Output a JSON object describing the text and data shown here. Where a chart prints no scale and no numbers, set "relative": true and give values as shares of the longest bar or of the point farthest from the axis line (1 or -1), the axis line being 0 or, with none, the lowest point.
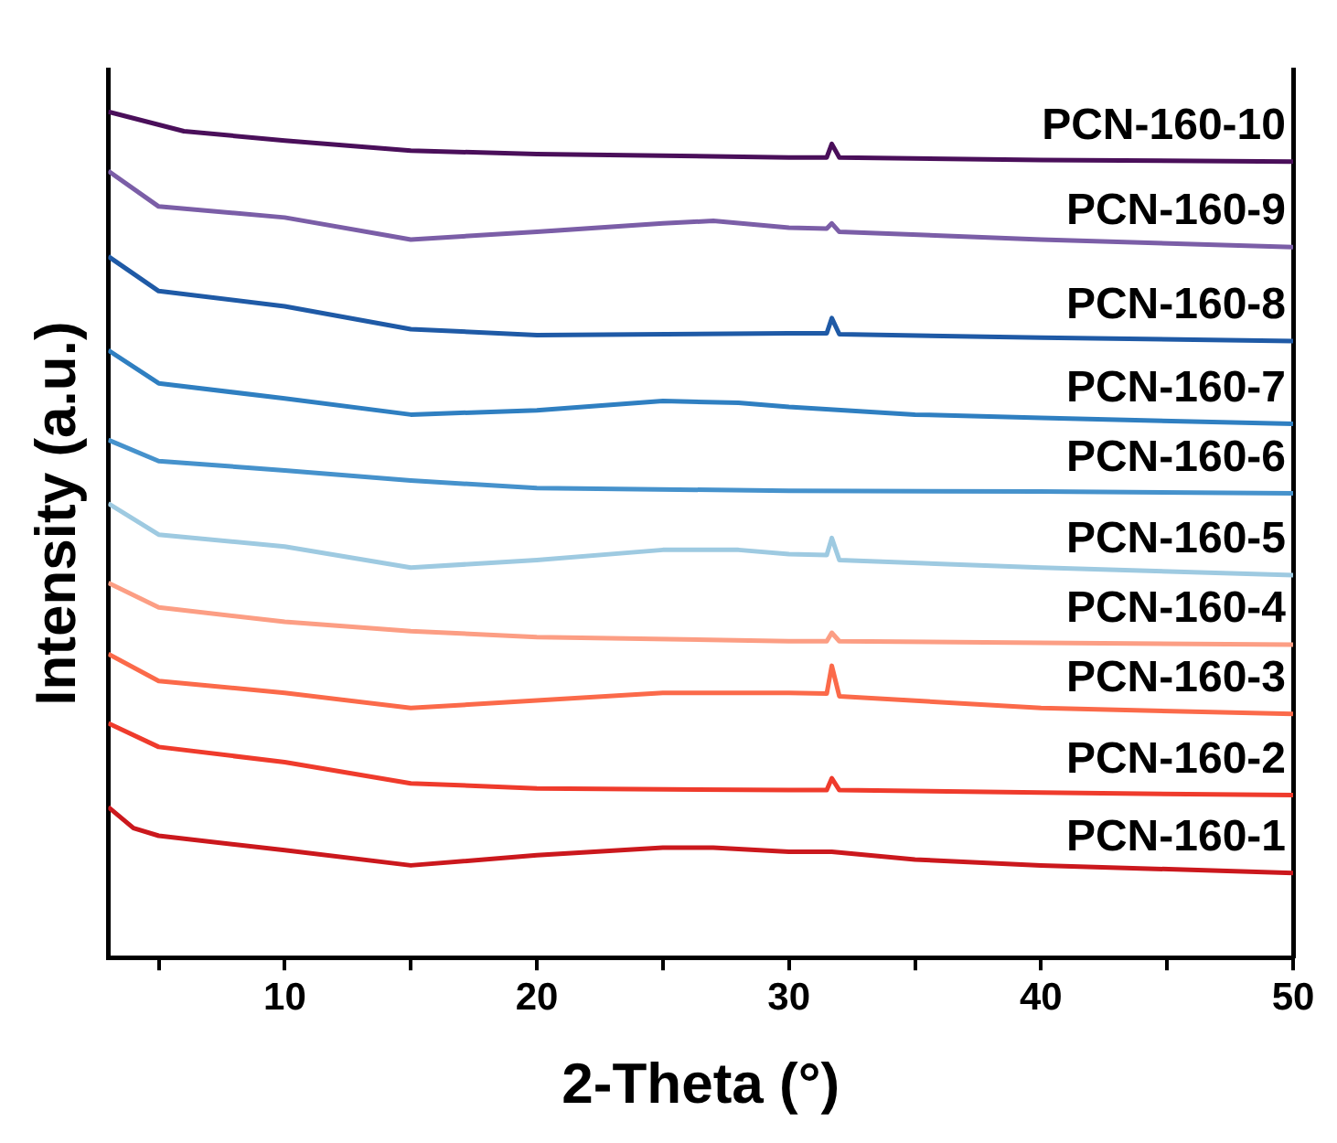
{
  "chart_data": {
    "type": "line",
    "xlabel": "2-Theta (°)",
    "ylabel": "Intensity (a.u.)",
    "relative": true,
    "legend": false,
    "grid": false,
    "marker": "none",
    "line_style": "solid",
    "xlim": [
      3,
      50
    ],
    "xticks": [
      {
        "value": 5,
        "label": null
      },
      10,
      {
        "value": 15,
        "label": null
      },
      20,
      {
        "value": 25,
        "label": null
      },
      30,
      {
        "value": 35,
        "label": null
      },
      40,
      {
        "value": 45,
        "label": null
      },
      50
    ],
    "series": [
      {
        "name": "PCN-160-1",
        "color": "#cb181d",
        "x": [
          3,
          4,
          5,
          10,
          15,
          20,
          25,
          27,
          30,
          31.7,
          35,
          40,
          50
        ],
        "values": [
          0.178,
          0.153,
          0.144,
          0.127,
          0.109,
          0.121,
          0.13,
          0.13,
          0.125,
          0.125,
          0.116,
          0.109,
          0.1
        ]
      },
      {
        "name": "PCN-160-2",
        "color": "#ef3b2c",
        "x": [
          3,
          5,
          10,
          15,
          20,
          30,
          31.5,
          31.7,
          32,
          40,
          50
        ],
        "values": [
          0.277,
          0.249,
          0.231,
          0.206,
          0.2,
          0.198,
          0.198,
          0.212,
          0.198,
          0.195,
          0.192
        ]
      },
      {
        "name": "PCN-160-3",
        "color": "#fb6a4a",
        "x": [
          3,
          5,
          10,
          15,
          20,
          25,
          30,
          31.5,
          31.7,
          32,
          40,
          50
        ],
        "values": [
          0.359,
          0.327,
          0.313,
          0.295,
          0.304,
          0.313,
          0.313,
          0.312,
          0.345,
          0.309,
          0.295,
          0.288
        ]
      },
      {
        "name": "PCN-160-4",
        "color": "#fc9e84",
        "x": [
          3,
          5,
          10,
          15,
          20,
          30,
          31.5,
          31.7,
          32,
          40,
          50
        ],
        "values": [
          0.443,
          0.414,
          0.397,
          0.386,
          0.379,
          0.374,
          0.374,
          0.384,
          0.374,
          0.372,
          0.37
        ]
      },
      {
        "name": "PCN-160-5",
        "color": "#9ecae1",
        "x": [
          3,
          5,
          10,
          15,
          20,
          25,
          28,
          30,
          31.5,
          31.7,
          32,
          40,
          50
        ],
        "values": [
          0.537,
          0.5,
          0.486,
          0.461,
          0.47,
          0.482,
          0.482,
          0.477,
          0.476,
          0.496,
          0.47,
          0.461,
          0.452
        ]
      },
      {
        "name": "PCN-160-6",
        "color": "#4692cc",
        "x": [
          3,
          5,
          10,
          15,
          20,
          30,
          40,
          50
        ],
        "values": [
          0.612,
          0.587,
          0.576,
          0.564,
          0.555,
          0.552,
          0.551,
          0.549
        ]
      },
      {
        "name": "PCN-160-7",
        "color": "#2f7fc1",
        "x": [
          3,
          5,
          10,
          15,
          20,
          25,
          28,
          30,
          35,
          40,
          50
        ],
        "values": [
          0.718,
          0.679,
          0.661,
          0.642,
          0.647,
          0.658,
          0.656,
          0.651,
          0.642,
          0.638,
          0.631
        ]
      },
      {
        "name": "PCN-160-8",
        "color": "#1f5aa6",
        "x": [
          3,
          5,
          10,
          15,
          20,
          30,
          31.5,
          31.7,
          32,
          40,
          50
        ],
        "values": [
          0.829,
          0.788,
          0.77,
          0.743,
          0.736,
          0.738,
          0.738,
          0.756,
          0.737,
          0.733,
          0.729
        ]
      },
      {
        "name": "PCN-160-9",
        "color": "#7b5ea7",
        "x": [
          3,
          5,
          10,
          15,
          20,
          25,
          27,
          30,
          31.5,
          31.7,
          32,
          40,
          50
        ],
        "values": [
          0.93,
          0.888,
          0.875,
          0.849,
          0.858,
          0.868,
          0.871,
          0.863,
          0.862,
          0.868,
          0.858,
          0.849,
          0.84
        ]
      },
      {
        "name": "PCN-160-10",
        "color": "#4a0f5a",
        "x": [
          3,
          6,
          10,
          15,
          20,
          30,
          31.5,
          31.7,
          32,
          40,
          50
        ],
        "values": [
          1.0,
          0.977,
          0.966,
          0.954,
          0.95,
          0.946,
          0.946,
          0.962,
          0.946,
          0.943,
          0.941
        ]
      }
    ]
  }
}
